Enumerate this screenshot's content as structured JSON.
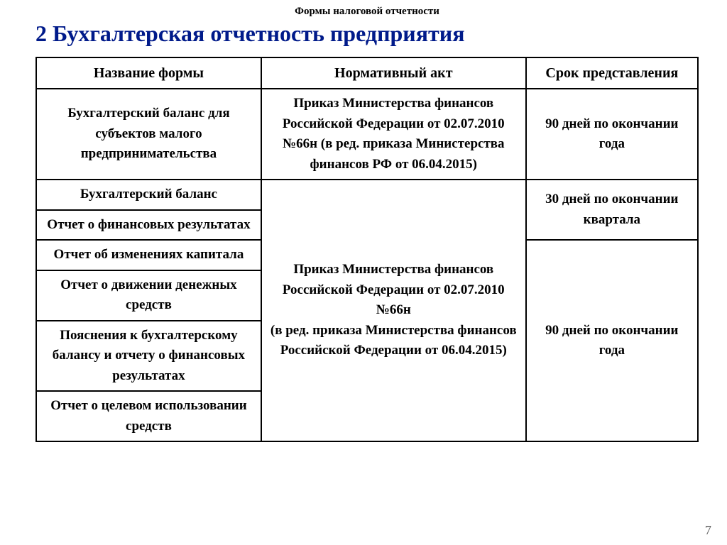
{
  "pretitle": "Формы налоговой отчетности",
  "title": "2 Бухгалтерская отчетность предприятия",
  "title_color": "#001a8a",
  "page_number": "7",
  "table": {
    "col_widths": [
      "34%",
      "40%",
      "26%"
    ],
    "header_fontsize": 20,
    "cell_fontsize": 19,
    "border_color": "#000000",
    "columns": [
      "Название формы",
      "Нормативный акт",
      "Срок представления"
    ],
    "rows": {
      "r1_c1": "Бухгалтерский баланс для субъектов малого предпринимательства",
      "r1_c2": "Приказ Министерства финансов Российской Федерации от 02.07.2010 №66н (в ред. приказа  Министерства финансов  РФ  от 06.04.2015)",
      "r1_c3": "90 дней по окончании года",
      "r2_c1": "Бухгалтерский баланс",
      "r2_c2_merged": "Приказ Министерства финансов Российской Федерации от 02.07.2010 №66н\n(в ред. приказа Министерства финансов Российской Федерации  от 06.04.2015)",
      "r2_c3_merged": "30 дней по окончании квартала",
      "r3_c1": "Отчет о финансовых результатах",
      "r4_c1": "Отчет об изменениях капитала",
      "r4_c3_merged": "90 дней по окончании года",
      "r5_c1": "Отчет о движении денежных средств",
      "r6_c1": "Пояснения к бухгалтерскому балансу и отчету о финансовых результатах",
      "r7_c1": "Отчет о целевом использовании средств"
    }
  }
}
